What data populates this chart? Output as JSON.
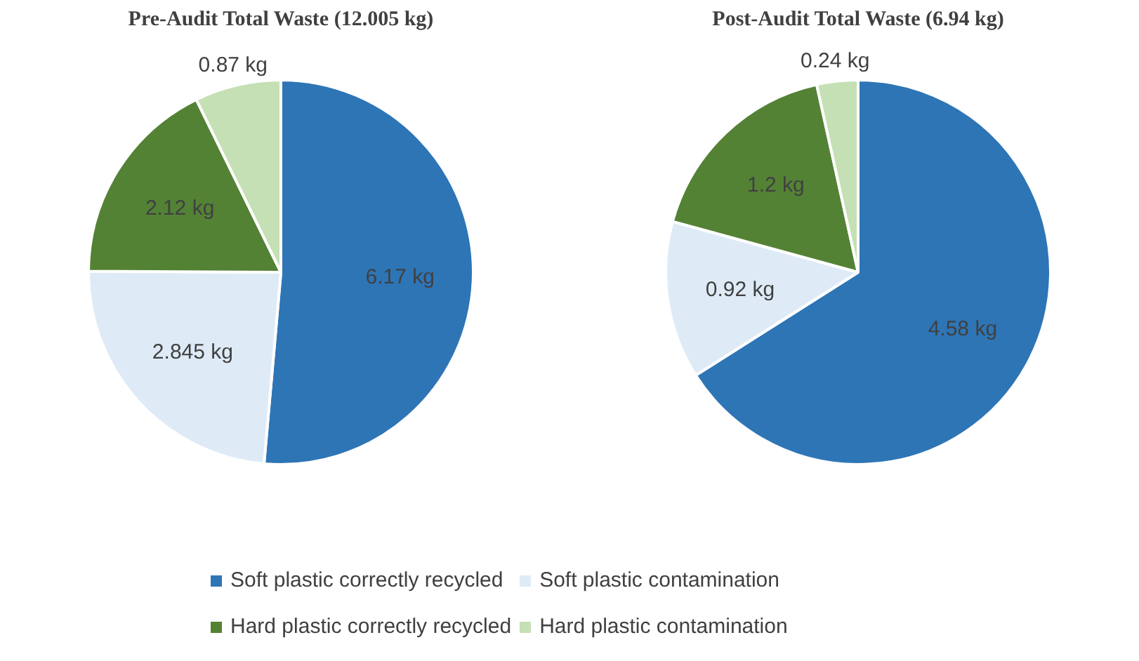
{
  "chart_data": [
    {
      "type": "pie",
      "title": "Pre-Audit Total Waste (12.005 kg)",
      "categories": [
        "Soft plastic correctly recycled",
        "Soft plastic contamination",
        "Hard plastic correctly recycled",
        "Hard plastic contamination"
      ],
      "values": [
        6.17,
        2.845,
        2.12,
        0.87
      ],
      "colors": [
        "#2e75b6",
        "#deebf7",
        "#548235",
        "#c5e0b4"
      ],
      "value_labels": [
        "6.17 kg",
        "2.845 kg",
        "2.12 kg",
        "0.87 kg"
      ],
      "legend": "bottom"
    },
    {
      "type": "pie",
      "title": "Post-Audit Total Waste (6.94 kg)",
      "categories": [
        null,
        null,
        null,
        null
      ],
      "values": [
        4.58,
        0.92,
        1.2,
        0.24
      ],
      "colors": [
        "#2e75b6",
        "#deebf7",
        "#548235",
        "#c5e0b4"
      ],
      "value_labels": [
        "4.58 kg",
        "0.92 kg",
        "1.2 kg",
        "0.24 kg"
      ]
    }
  ]
}
